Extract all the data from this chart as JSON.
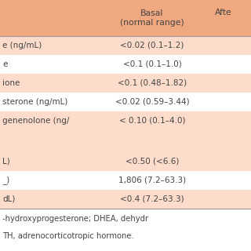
{
  "background_color": "#F9C9B0",
  "header_bg": "#F0A880",
  "salmon_row": "#FDDCCC",
  "white_row": "#FFFFFF",
  "footer_bg": "#FFFFFF",
  "line_color": "#999999",
  "text_color": "#444444",
  "header_col1": "Basal\n(normal range)",
  "header_col2": "Afte",
  "rows": [
    [
      "e (ng/mL)",
      "<0.02 (0.1–1.2)"
    ],
    [
      "e",
      "<0.1 (0.1–1.0)"
    ],
    [
      "ione",
      "<0.1 (0.48–1.82)"
    ],
    [
      "sterone (ng/mL)",
      "<0.02 (0.59–3.44)"
    ],
    [
      "genenolone (ng/",
      "< 0.10 (0.1–4.0)"
    ],
    [
      "",
      ""
    ],
    [
      "L)",
      "<0.50 (<6.6)"
    ],
    [
      "_)",
      "1,806 (7.2–63.3)"
    ],
    [
      "dL)",
      "<0.4 (7.2–63.3)"
    ]
  ],
  "row_colors": [
    "#FDDCCC",
    "#FFFFFF",
    "#FDDCCC",
    "#FFFFFF",
    "#FDDCCC",
    "#FDDCCC",
    "#FDDCCC",
    "#FFFFFF",
    "#FDDCCC"
  ],
  "footer_lines": [
    "-hydroxyprogesterone; DHEA, dehydr",
    "TH, adrenocorticotropic hormone."
  ],
  "font_size": 7.5,
  "header_font_size": 7.8,
  "footer_font_size": 7.2
}
